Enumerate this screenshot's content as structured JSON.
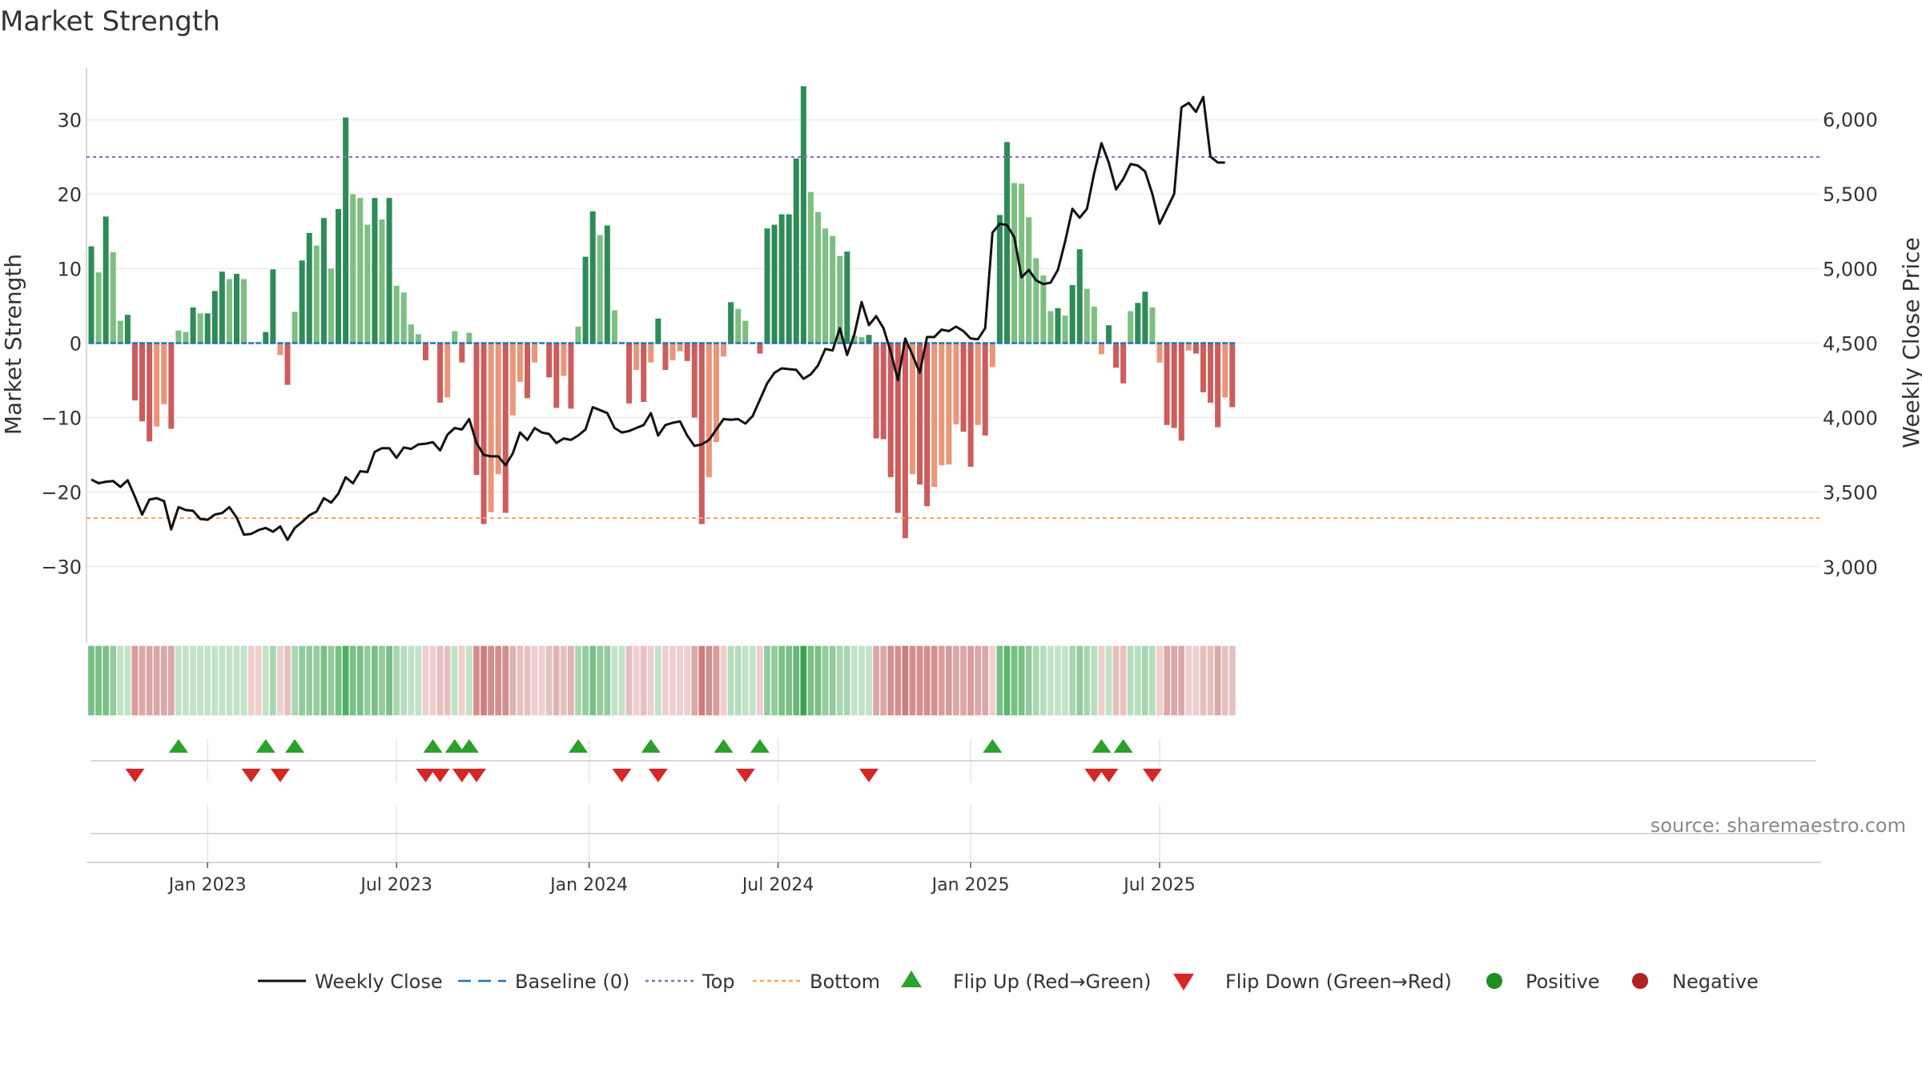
{
  "chart_data": {
    "type": "bar+line",
    "title": "Market Strength",
    "ylabel_left": "Market Strength",
    "ylabel_right": "Weekly Close Price",
    "left_axis": {
      "ticks": [
        30,
        20,
        10,
        0,
        -10,
        -20,
        -30
      ],
      "labels": [
        "30",
        "20",
        "10",
        "0",
        "−10",
        "−20",
        "−30"
      ],
      "ylim": [
        -37,
        37
      ]
    },
    "right_axis": {
      "ticks": [
        6000,
        5500,
        5000,
        4500,
        4000,
        3500,
        3000
      ],
      "labels": [
        "6,000",
        "5,500",
        "5,000",
        "4,500",
        "4,000",
        "3,500",
        "3,000"
      ],
      "ylim": [
        2700,
        6500
      ]
    },
    "top_line": 25,
    "bottom_line": -23.5,
    "x_ticks": [
      "Jan 2023",
      "Jul 2023",
      "Jan 2024",
      "Jul 2024",
      "Jan 2025",
      "Jul 2025"
    ],
    "x_tick_index": [
      16,
      42,
      68.5,
      94.5,
      121,
      147
    ],
    "strength": [
      13,
      9.5,
      17,
      12.2,
      3,
      3.8,
      -7.7,
      -10.5,
      -13.2,
      -11.2,
      -8.2,
      -11.5,
      1.7,
      1.5,
      4.8,
      4,
      4,
      7,
      9.6,
      8.6,
      9.3,
      8.6,
      0,
      0,
      1.5,
      9.9,
      -1.6,
      -5.6,
      4.2,
      11.1,
      14.8,
      13.1,
      16.8,
      10,
      18,
      30.3,
      20,
      19.5,
      15.9,
      19.5,
      16.6,
      19.5,
      7.7,
      6.8,
      2.5,
      1.2,
      -2.3,
      0,
      -8,
      -7.3,
      1.6,
      -2.6,
      1.4,
      -17.7,
      -24.3,
      -22.7,
      -17.6,
      -22.8,
      -9.7,
      -5.2,
      -7.4,
      -2.6,
      0,
      -4.6,
      -8.7,
      -4.4,
      -8.8,
      2.2,
      11.6,
      17.7,
      14.5,
      15.8,
      4.4,
      0,
      -8.1,
      -3.6,
      -7.9,
      -2.6,
      3.3,
      -3.6,
      -2.3,
      -1.1,
      -2.4,
      -10,
      -24.3,
      -18,
      -13.3,
      -1.8,
      5.5,
      4.6,
      3,
      0,
      -1.4,
      15.4,
      15.9,
      17.3,
      17.3,
      24.8,
      34.5,
      20.3,
      17.6,
      15.4,
      14.4,
      11.7,
      12.3,
      1,
      0.8,
      1.1,
      -12.8,
      -12.9,
      -18,
      -22.8,
      -26.2,
      -17.6,
      -19,
      -21.9,
      -19.3,
      -16.4,
      -16.3,
      -10.9,
      -11.9,
      -16.6,
      -11,
      -12.4,
      -3.2,
      17.2,
      27,
      21.5,
      21.4,
      16.9,
      11.4,
      9.1,
      4.3,
      4.7,
      3.7,
      7.8,
      12.6,
      7.3,
      4.9,
      -1.5,
      2.4,
      -3.3,
      -5.4,
      4.3,
      5.4,
      6.9,
      4.8,
      -2.6,
      -11,
      -11.4,
      -13.1,
      -1,
      -1.4,
      -6.6,
      -8,
      -11.3,
      -7.3,
      -8.6
    ],
    "weekly_close": [
      3585,
      3560,
      3570,
      3575,
      3535,
      3580,
      3470,
      3350,
      3450,
      3460,
      3440,
      3250,
      3400,
      3380,
      3375,
      3320,
      3315,
      3350,
      3360,
      3400,
      3330,
      3215,
      3220,
      3245,
      3260,
      3235,
      3270,
      3180,
      3260,
      3300,
      3345,
      3370,
      3460,
      3430,
      3490,
      3600,
      3560,
      3640,
      3635,
      3770,
      3795,
      3795,
      3730,
      3800,
      3790,
      3820,
      3825,
      3835,
      3780,
      3885,
      3930,
      3920,
      3990,
      3830,
      3750,
      3740,
      3740,
      3680,
      3760,
      3900,
      3850,
      3930,
      3900,
      3890,
      3830,
      3860,
      3850,
      3880,
      3920,
      4070,
      4050,
      4030,
      3930,
      3900,
      3910,
      3930,
      3950,
      4030,
      3880,
      3950,
      3965,
      3975,
      3880,
      3810,
      3820,
      3850,
      3920,
      3990,
      3985,
      3990,
      3960,
      4010,
      4120,
      4230,
      4300,
      4330,
      4325,
      4320,
      4260,
      4290,
      4350,
      4460,
      4450,
      4600,
      4420,
      4560,
      4775,
      4620,
      4680,
      4600,
      4440,
      4250,
      4530,
      4420,
      4300,
      4540,
      4540,
      4590,
      4580,
      4610,
      4580,
      4530,
      4525,
      4600,
      5240,
      5300,
      5290,
      5210,
      4940,
      4990,
      4920,
      4895,
      4905,
      4990,
      5180,
      5400,
      5340,
      5400,
      5640,
      5840,
      5710,
      5530,
      5600,
      5700,
      5690,
      5650,
      5500,
      5300,
      5400,
      5500,
      6080,
      6110,
      6050,
      6150,
      5750,
      5710,
      5710
    ],
    "color_band": [
      "#79bf86",
      "#79bf86",
      "#79bf86",
      "#93cb9e",
      "#c2e2c8",
      "#c2e2c8",
      "#d99a9a",
      "#dba7a7",
      "#dba7a7",
      "#dba7a7",
      "#dba7a7",
      "#dba7a7",
      "#c2e2c8",
      "#c2e2c8",
      "#c2e2c8",
      "#c2e2c8",
      "#c2e2c8",
      "#c2e2c8",
      "#c2e2c8",
      "#c2e2c8",
      "#c2e2c8",
      "#c2e2c8",
      "#eecece",
      "#eecece",
      "#c2e2c8",
      "#a8d6b1",
      "#eecece",
      "#e6c0c0",
      "#a8d6b1",
      "#93cb9e",
      "#93cb9e",
      "#93cb9e",
      "#79bf86",
      "#93cb9e",
      "#79bf86",
      "#4fae62",
      "#79bf86",
      "#79bf86",
      "#93cb9e",
      "#79bf86",
      "#93cb9e",
      "#79bf86",
      "#a8d6b1",
      "#b6ddbd",
      "#c2e2c8",
      "#c2e2c8",
      "#eecece",
      "#eecece",
      "#e6c0c0",
      "#e6c0c0",
      "#c2e2c8",
      "#eecece",
      "#c2e2c8",
      "#d48e8e",
      "#cd7d7d",
      "#d48e8e",
      "#d48e8e",
      "#d48e8e",
      "#dfb3b3",
      "#e6c0c0",
      "#e6c0c0",
      "#eecece",
      "#eecece",
      "#e6c0c0",
      "#dfb3b3",
      "#e6c0c0",
      "#dfb3b3",
      "#a8d6b1",
      "#93cb9e",
      "#79bf86",
      "#93cb9e",
      "#93cb9e",
      "#c2e2c8",
      "#c2e2c8",
      "#e6c0c0",
      "#eecece",
      "#e6c0c0",
      "#eecece",
      "#c2e2c8",
      "#eecece",
      "#eecece",
      "#eecece",
      "#eecece",
      "#dba7a7",
      "#cd7d7d",
      "#d48e8e",
      "#d99a9a",
      "#eecece",
      "#b6ddbd",
      "#b6ddbd",
      "#c2e2c8",
      "#c2e2c8",
      "#eecece",
      "#93cb9e",
      "#93cb9e",
      "#79bf86",
      "#79bf86",
      "#68b878",
      "#3d9f50",
      "#79bf86",
      "#79bf86",
      "#93cb9e",
      "#93cb9e",
      "#a8d6b1",
      "#a8d6b1",
      "#c2e2c8",
      "#c2e2c8",
      "#c2e2c8",
      "#dba7a7",
      "#dba7a7",
      "#d48e8e",
      "#d48e8e",
      "#cd7d7d",
      "#d48e8e",
      "#d48e8e",
      "#d48e8e",
      "#d48e8e",
      "#d99a9a",
      "#d99a9a",
      "#dba7a7",
      "#dba7a7",
      "#d99a9a",
      "#dba7a7",
      "#dba7a7",
      "#eecece",
      "#79bf86",
      "#5fb36f",
      "#79bf86",
      "#79bf86",
      "#93cb9e",
      "#a8d6b1",
      "#b6ddbd",
      "#c2e2c8",
      "#c2e2c8",
      "#c2e2c8",
      "#a8d6b1",
      "#93cb9e",
      "#a8d6b1",
      "#b6ddbd",
      "#eecece",
      "#c2e2c8",
      "#e6c0c0",
      "#e6c0c0",
      "#b6ddbd",
      "#b6ddbd",
      "#a8d6b1",
      "#b6ddbd",
      "#eecece",
      "#dba7a7",
      "#dba7a7",
      "#dba7a7",
      "#eecece",
      "#eecece",
      "#e6c0c0",
      "#e6c0c0",
      "#dba7a7",
      "#e6c0c0",
      "#e6c0c0"
    ],
    "flip_up_index": [
      12,
      24,
      28,
      47,
      50,
      52,
      67,
      77,
      87,
      92,
      124,
      139,
      142
    ],
    "flip_down_index": [
      6,
      22,
      26,
      46,
      48,
      51,
      53,
      73,
      78,
      90,
      107,
      138,
      140,
      146
    ],
    "colors": {
      "strong_green": "#2e8b57",
      "light_green": "#7dbf80",
      "strong_red": "#cd5c5c",
      "light_red": "#e9967a",
      "weekly_close": "#111111",
      "baseline": "#1f77b4",
      "top": "#9467bd",
      "bottom": "#f4a460",
      "flip_up": "#2ca02c",
      "flip_down": "#d62728",
      "positive": "#228b22",
      "negative": "#b22222"
    }
  },
  "legend": {
    "weekly_close": "Weekly Close",
    "baseline": "Baseline (0)",
    "top": "Top",
    "bottom": "Bottom",
    "flip_up": "Flip Up (Red→Green)",
    "flip_down": "Flip Down (Green→Red)",
    "positive": "Positive",
    "negative": "Negative"
  },
  "source": "source: sharemaestro.com"
}
